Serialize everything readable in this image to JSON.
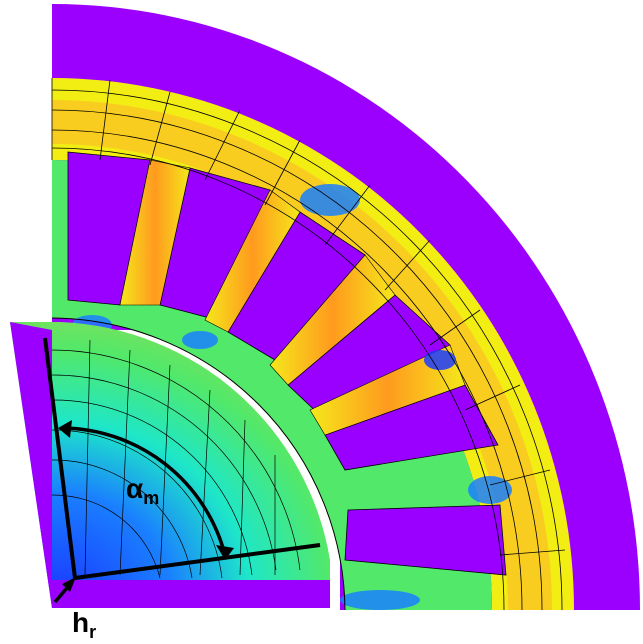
{
  "labels": {
    "angle_main": "α",
    "angle_sub": "m",
    "height_main": "h",
    "height_sub": "r"
  },
  "colors": {
    "background": "#ffffff",
    "air": "#9b00ff",
    "slot": "#9a00ff",
    "stator_yoke_band": "#f2ee14",
    "tooth_core": "#ff9a1e",
    "tooth_edge": "#f5e81b",
    "field_green": "#52e86a",
    "field_cyan": "#1ee7c8",
    "field_blue": "#1a7fff",
    "field_dark_blue": "#1b3bff",
    "rotor_light": "#7fe4ee",
    "flux_line": "#000000",
    "annotation": "#000000"
  },
  "stator": {
    "slot_count_visible": 9
  },
  "rotor": {
    "pole_count_visible": 1
  }
}
